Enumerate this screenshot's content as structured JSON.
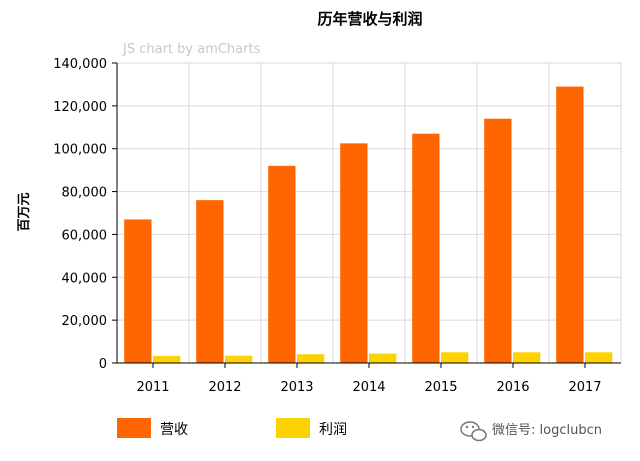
{
  "chart_data": {
    "type": "bar",
    "title": "历年营收与利润",
    "credit": "JS chart by amCharts",
    "xlabel": "",
    "ylabel": "百万元",
    "categories": [
      "2011",
      "2012",
      "2013",
      "2014",
      "2015",
      "2016",
      "2017"
    ],
    "series": [
      {
        "name": "营收",
        "color": "#ff6600",
        "values": [
          67000,
          76000,
          92000,
          102500,
          107000,
          114000,
          129000
        ]
      },
      {
        "name": "利润",
        "color": "#fcd202",
        "values": [
          3300,
          3400,
          4100,
          4400,
          5000,
          5000,
          5000
        ]
      }
    ],
    "ylim": [
      0,
      140000
    ],
    "yticks": [
      0,
      20000,
      40000,
      60000,
      80000,
      100000,
      120000,
      140000
    ],
    "ytick_labels": [
      "0",
      "20,000",
      "40,000",
      "60,000",
      "80,000",
      "100,000",
      "120,000",
      "140,000"
    ],
    "grid": true,
    "legend_position": "bottom-left"
  },
  "watermark": {
    "text": "微信号: logclubcn",
    "icon": "wechat-icon"
  }
}
